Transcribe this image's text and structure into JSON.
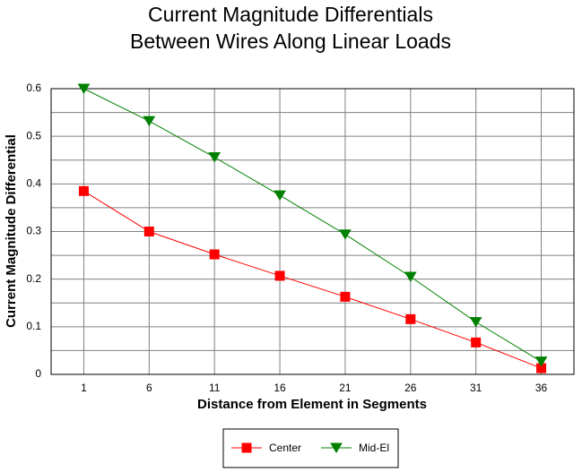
{
  "chart_data": {
    "type": "line",
    "title": "Current Magnitude Differentials",
    "subtitle": "Between Wires Along Linear Loads",
    "x_label": "Distance from Element in Segments",
    "y_label": "Current Magnitude Differential",
    "categories": [
      "1",
      "6",
      "11",
      "16",
      "21",
      "26",
      "31",
      "36"
    ],
    "series": [
      {
        "name": "Center",
        "color": "#ff0000",
        "marker": "square",
        "values": [
          0.385,
          0.3,
          0.252,
          0.207,
          0.163,
          0.116,
          0.067,
          0.013
        ]
      },
      {
        "name": "Mid-El",
        "color": "#008000",
        "marker": "triangle-down",
        "values": [
          0.6,
          0.532,
          0.456,
          0.376,
          0.294,
          0.205,
          0.11,
          0.027
        ]
      }
    ],
    "ylim": [
      0,
      0.6
    ],
    "yticks": [
      0,
      0.1,
      0.2,
      0.3,
      0.4,
      0.5,
      0.6
    ],
    "y_minor_ticks": [
      0.05,
      0.15,
      0.25,
      0.35,
      0.45,
      0.55
    ],
    "grid": true,
    "legend": "bottom"
  }
}
